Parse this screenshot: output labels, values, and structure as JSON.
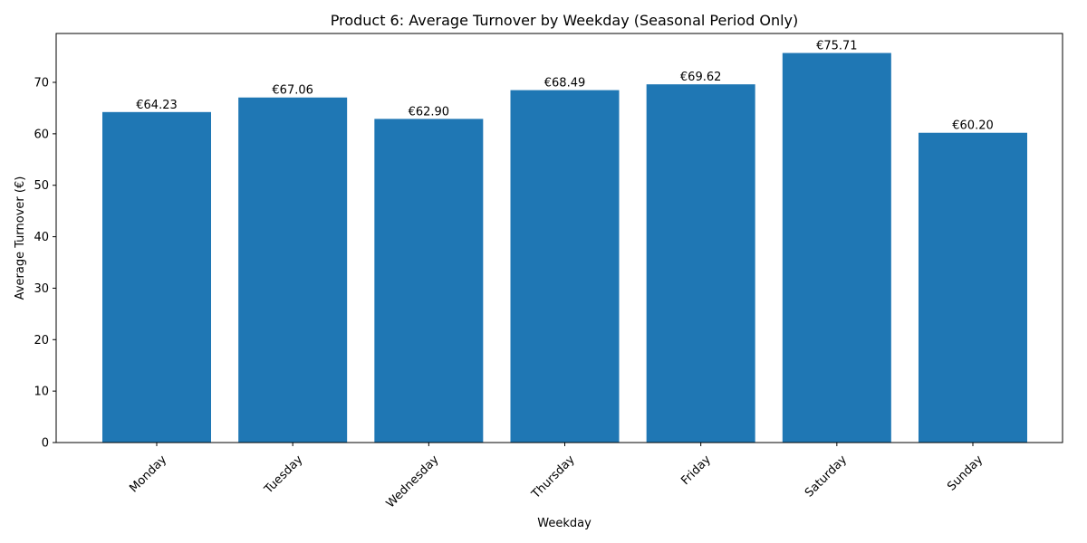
{
  "chart_data": {
    "type": "bar",
    "title": "Product 6: Average Turnover by Weekday (Seasonal Period Only)",
    "xlabel": "Weekday",
    "ylabel": "Average Turnover (€)",
    "categories": [
      "Monday",
      "Tuesday",
      "Wednesday",
      "Thursday",
      "Friday",
      "Saturday",
      "Sunday"
    ],
    "values": [
      64.23,
      67.06,
      62.9,
      68.49,
      69.62,
      75.71,
      60.2
    ],
    "value_labels": [
      "€64.23",
      "€67.06",
      "€62.90",
      "€68.49",
      "€69.62",
      "€75.71",
      "€60.20"
    ],
    "ylim": [
      0,
      79.5
    ],
    "yticks": [
      0,
      10,
      20,
      30,
      40,
      50,
      60,
      70
    ],
    "ytick_labels": [
      "0",
      "10",
      "20",
      "30",
      "40",
      "50",
      "60",
      "70"
    ],
    "bar_color": "#1f77b4",
    "grid": false,
    "legend": "none",
    "x_tick_rotation_deg": 45
  }
}
